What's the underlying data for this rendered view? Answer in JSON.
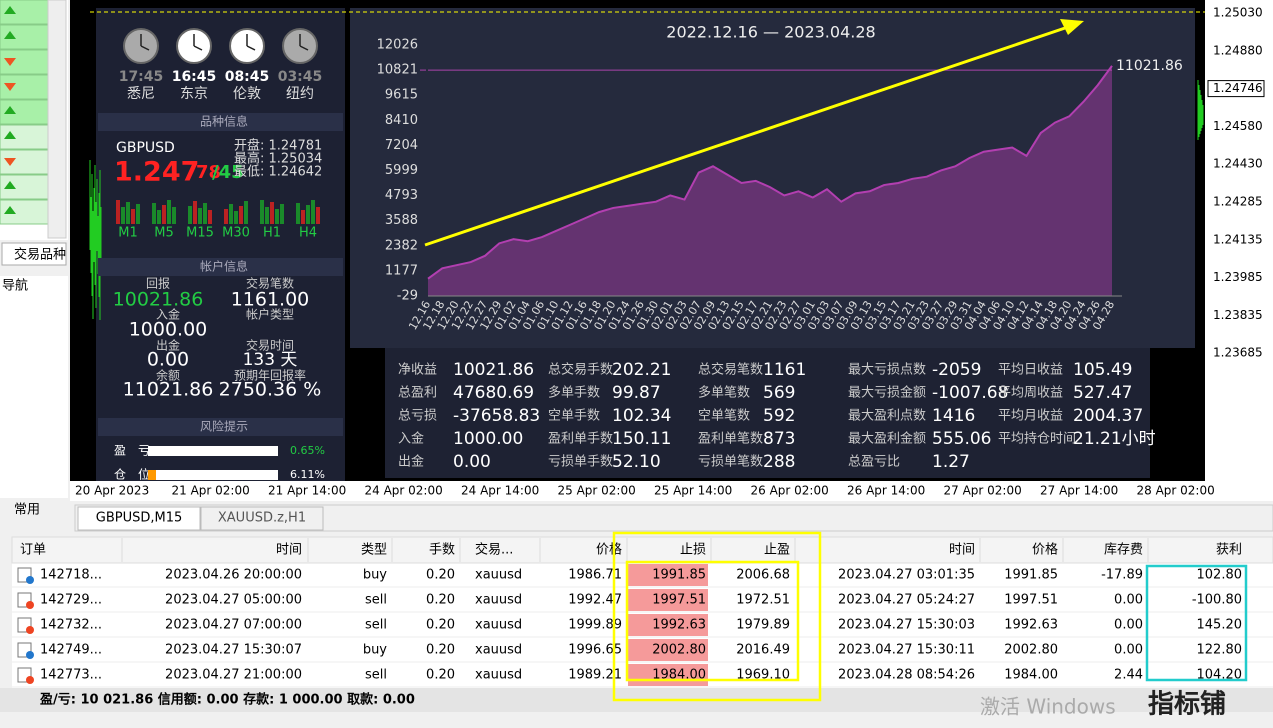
{
  "market_watch": {
    "tab": "交易品种"
  },
  "navigator": {
    "title": "导航",
    "tab": "常用"
  },
  "clocks": [
    {
      "time": "17:45",
      "city": "悉尼"
    },
    {
      "time": "16:45",
      "city": "东京"
    },
    {
      "time": "08:45",
      "city": "伦敦"
    },
    {
      "time": "03:45",
      "city": "纽约"
    }
  ],
  "symbol_info": {
    "title": "品种信息",
    "symbol": "GBPUSD",
    "price_main": "1.247",
    "price_small": "78",
    "price_ask": "/45",
    "open": "开盘: 1.24781",
    "high": "最高: 1.25034",
    "low": "最低: 1.24642",
    "timeframes": [
      "M1",
      "M5",
      "M15",
      "M30",
      "H1",
      "H4"
    ]
  },
  "account_info": {
    "title": "帐户信息",
    "items": [
      {
        "label": "回报",
        "value": "10021.86"
      },
      {
        "label": "交易笔数",
        "value": "1161.00"
      },
      {
        "label": "入金",
        "value": "1000.00"
      },
      {
        "label": "帐户类型"
      },
      {
        "label": "出金",
        "value": "0.00"
      },
      {
        "label": "交易时间",
        "value": "133 天"
      },
      {
        "label": "余额",
        "value": "11021.86"
      },
      {
        "label": "预期年回报率",
        "value": "2750.36 %"
      }
    ]
  },
  "risk": {
    "title": "风险提示",
    "rows": [
      {
        "label": "盈　亏",
        "value": "0.65%"
      },
      {
        "label": "仓　位",
        "value": "6.11%"
      }
    ]
  },
  "equity_chart": {
    "type": "area",
    "title": "2022.12.16 — 2023.04.28",
    "categories": [
      "12.16",
      "12.18",
      "12.20",
      "12.22",
      "12.27",
      "12.29",
      "01.02",
      "01.04",
      "01.06",
      "01.10",
      "01.12",
      "01.16",
      "01.18",
      "01.20",
      "01.24",
      "01.26",
      "01.30",
      "02.01",
      "02.03",
      "02.07",
      "02.09",
      "02.13",
      "02.15",
      "02.17",
      "02.21",
      "02.23",
      "02.27",
      "03.01",
      "03.03",
      "03.07",
      "03.09",
      "03.13",
      "03.15",
      "03.17",
      "03.21",
      "03.23",
      "03.27",
      "03.29",
      "03.31",
      "04.04",
      "04.06",
      "04.10",
      "04.12",
      "04.14",
      "04.18",
      "04.20",
      "04.24",
      "04.26",
      "04.28"
    ],
    "values": [
      800,
      1300,
      1450,
      1600,
      1900,
      2500,
      2700,
      2600,
      2800,
      3100,
      3400,
      3700,
      4000,
      4200,
      4300,
      4400,
      4500,
      4800,
      4600,
      5900,
      6200,
      5800,
      5400,
      5500,
      5200,
      4800,
      5000,
      4700,
      5100,
      4500,
      4900,
      5000,
      5300,
      5400,
      5600,
      5700,
      6000,
      6200,
      6600,
      6900,
      7000,
      7100,
      6700,
      7800,
      8300,
      8600,
      9300,
      10100,
      11021.86
    ],
    "value_labels": {
      "48": "11021.86"
    },
    "ylim": [
      -29,
      12026
    ],
    "yticks": [
      -29,
      1177,
      2382,
      3588,
      4793,
      5999,
      7204,
      8410,
      9615,
      10821,
      12026
    ],
    "color": "#b23fb0"
  },
  "stats": [
    [
      {
        "label": "净收益",
        "value": "10021.86"
      },
      {
        "label": "总盈利",
        "value": "47680.69"
      },
      {
        "label": "总亏损",
        "value": "-37658.83"
      },
      {
        "label": "入金",
        "value": "1000.00"
      },
      {
        "label": "出金",
        "value": "0.00"
      }
    ],
    [
      {
        "label": "总交易手数",
        "value": "202.21"
      },
      {
        "label": "多单手数",
        "value": "99.87"
      },
      {
        "label": "空单手数",
        "value": "102.34"
      },
      {
        "label": "盈利单手数",
        "value": "150.11"
      },
      {
        "label": "亏损单手数",
        "value": "52.10"
      }
    ],
    [
      {
        "label": "总交易笔数",
        "value": "1161"
      },
      {
        "label": "多单笔数",
        "value": "569"
      },
      {
        "label": "空单笔数",
        "value": "592"
      },
      {
        "label": "盈利单笔数",
        "value": "873"
      },
      {
        "label": "亏损单笔数",
        "value": "288"
      }
    ],
    [
      {
        "label": "最大亏损点数",
        "value": "-2059"
      },
      {
        "label": "最大亏损金额",
        "value": "-1007.68"
      },
      {
        "label": "最大盈利点数",
        "value": "1416"
      },
      {
        "label": "最大盈利金额",
        "value": "555.06"
      },
      {
        "label": "总盈亏比",
        "value": "1.27"
      }
    ],
    [
      {
        "label": "平均日收益",
        "value": "105.49"
      },
      {
        "label": "平均周收益",
        "value": "527.47"
      },
      {
        "label": "平均月收益",
        "value": "2004.37"
      },
      {
        "label": "平均持仓时间",
        "value": "21.21小时"
      }
    ]
  ],
  "price_axis": [
    "1.25030",
    "1.24880",
    "1.24746",
    "1.24580",
    "1.24430",
    "1.24285",
    "1.24135",
    "1.23985",
    "1.23835",
    "1.23685"
  ],
  "time_axis": [
    "20 Apr 2023",
    "21 Apr 02:00",
    "21 Apr 14:00",
    "24 Apr 02:00",
    "24 Apr 14:00",
    "25 Apr 02:00",
    "25 Apr 14:00",
    "26 Apr 02:00",
    "26 Apr 14:00",
    "27 Apr 02:00",
    "27 Apr 14:00",
    "28 Apr 02:00"
  ],
  "chart_tabs": [
    "GBPUSD,M15",
    "XAUUSD.z,H1"
  ],
  "table": {
    "headers": [
      "订单",
      "时间",
      "类型",
      "手数",
      "交易...",
      "价格",
      "止损",
      "止盈",
      "时间",
      "价格",
      "库存费",
      "获利"
    ],
    "rows": [
      [
        "142718...",
        "2023.04.26 20:00:00",
        "buy",
        "0.20",
        "xauusd",
        "1986.71",
        "1991.85",
        "2006.68",
        "2023.04.27 03:01:35",
        "1991.85",
        "-17.89",
        "102.80"
      ],
      [
        "142729...",
        "2023.04.27 05:00:00",
        "sell",
        "0.20",
        "xauusd",
        "1992.47",
        "1997.51",
        "1972.51",
        "2023.04.27 05:24:27",
        "1997.51",
        "0.00",
        "-100.80"
      ],
      [
        "142732...",
        "2023.04.27 07:00:00",
        "sell",
        "0.20",
        "xauusd",
        "1999.89",
        "1992.63",
        "1979.89",
        "2023.04.27 15:30:03",
        "1992.63",
        "0.00",
        "145.20"
      ],
      [
        "142749...",
        "2023.04.27 15:30:07",
        "buy",
        "0.20",
        "xauusd",
        "1996.65",
        "2002.80",
        "2016.49",
        "2023.04.27 15:30:11",
        "2002.80",
        "0.00",
        "122.80"
      ],
      [
        "142773...",
        "2023.04.27 21:00:00",
        "sell",
        "0.20",
        "xauusd",
        "1989.21",
        "1984.00",
        "1969.10",
        "2023.04.28 08:54:26",
        "1984.00",
        "2.44",
        "104.20"
      ]
    ]
  },
  "footer": "盈/亏: 10 021.86 信用额: 0.00 存款: 1 000.00 取款: 0.00",
  "watermark": "激活 Windows",
  "logo": "指标铺"
}
